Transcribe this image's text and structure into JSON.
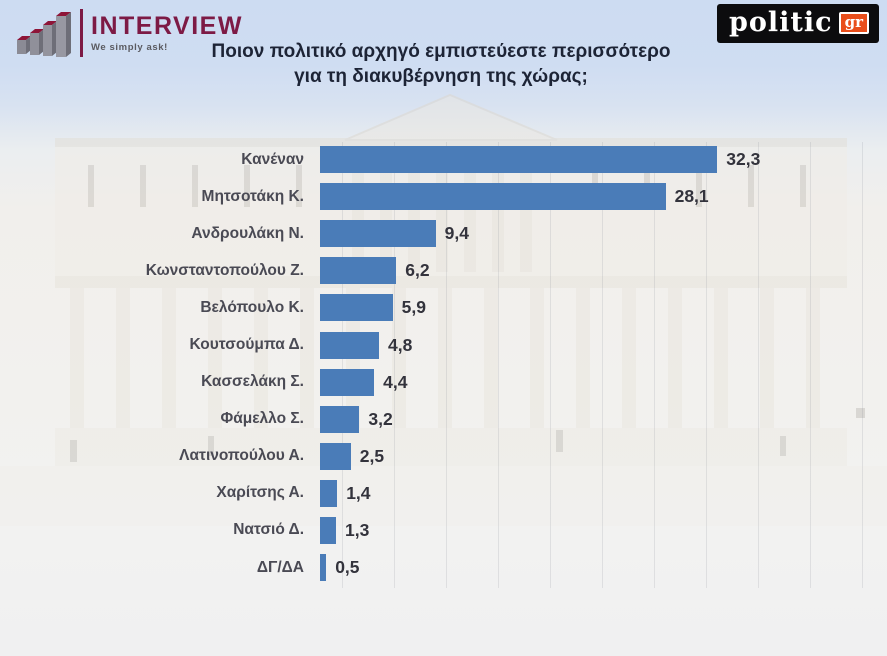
{
  "header": {
    "interview_logo": {
      "name": "INTERVIEW",
      "tagline": "We simply ask!"
    },
    "politic_logo": {
      "name": "politic",
      "tld": "gr"
    },
    "title_line1": "Ποιον πολιτικό αρχηγό εμπιστεύεστε περισσότερο",
    "title_line2": "για τη διακυβέρνηση της χώρας;"
  },
  "chart_data": {
    "type": "bar",
    "orientation": "horizontal",
    "title": "Ποιον πολιτικό αρχηγό εμπιστεύεστε περισσότερο για τη διακυβέρνηση της χώρας;",
    "categories": [
      "Κανέναν",
      "Μητσοτάκη Κ.",
      "Ανδρουλάκη Ν.",
      "Κωνσταντοπούλου Ζ.",
      "Βελόπουλο Κ.",
      "Κουτσούμπα Δ.",
      "Κασσελάκη Σ.",
      "Φάμελλο Σ.",
      "Λατινοπούλου Α.",
      "Χαρίτσης Α.",
      "Νατσιό Δ.",
      "ΔΓ/ΔΑ"
    ],
    "values": [
      32.3,
      28.1,
      9.4,
      6.2,
      5.9,
      4.8,
      4.4,
      3.2,
      2.5,
      1.4,
      1.3,
      0.5
    ],
    "value_labels": [
      "32,3",
      "28,1",
      "9,4",
      "6,2",
      "5,9",
      "4,8",
      "4,4",
      "3,2",
      "2,5",
      "1,4",
      "1,3",
      "0,5"
    ],
    "xlim": [
      0,
      34
    ],
    "grid": "faint-vertical",
    "legend": "none",
    "bar_color": "#4a7cb8",
    "label_color": "#4a4a54",
    "value_color": "#33333c"
  },
  "colors": {
    "sky": "#cddcf2",
    "bar_blue": "#4a7cb8",
    "interview_maroon": "#7d1a45",
    "politic_black": "#0c0c0e",
    "politic_orange": "#e94e1b",
    "title_navy": "#1d2436"
  },
  "background_description": "faded photo of Hellenic Parliament building"
}
